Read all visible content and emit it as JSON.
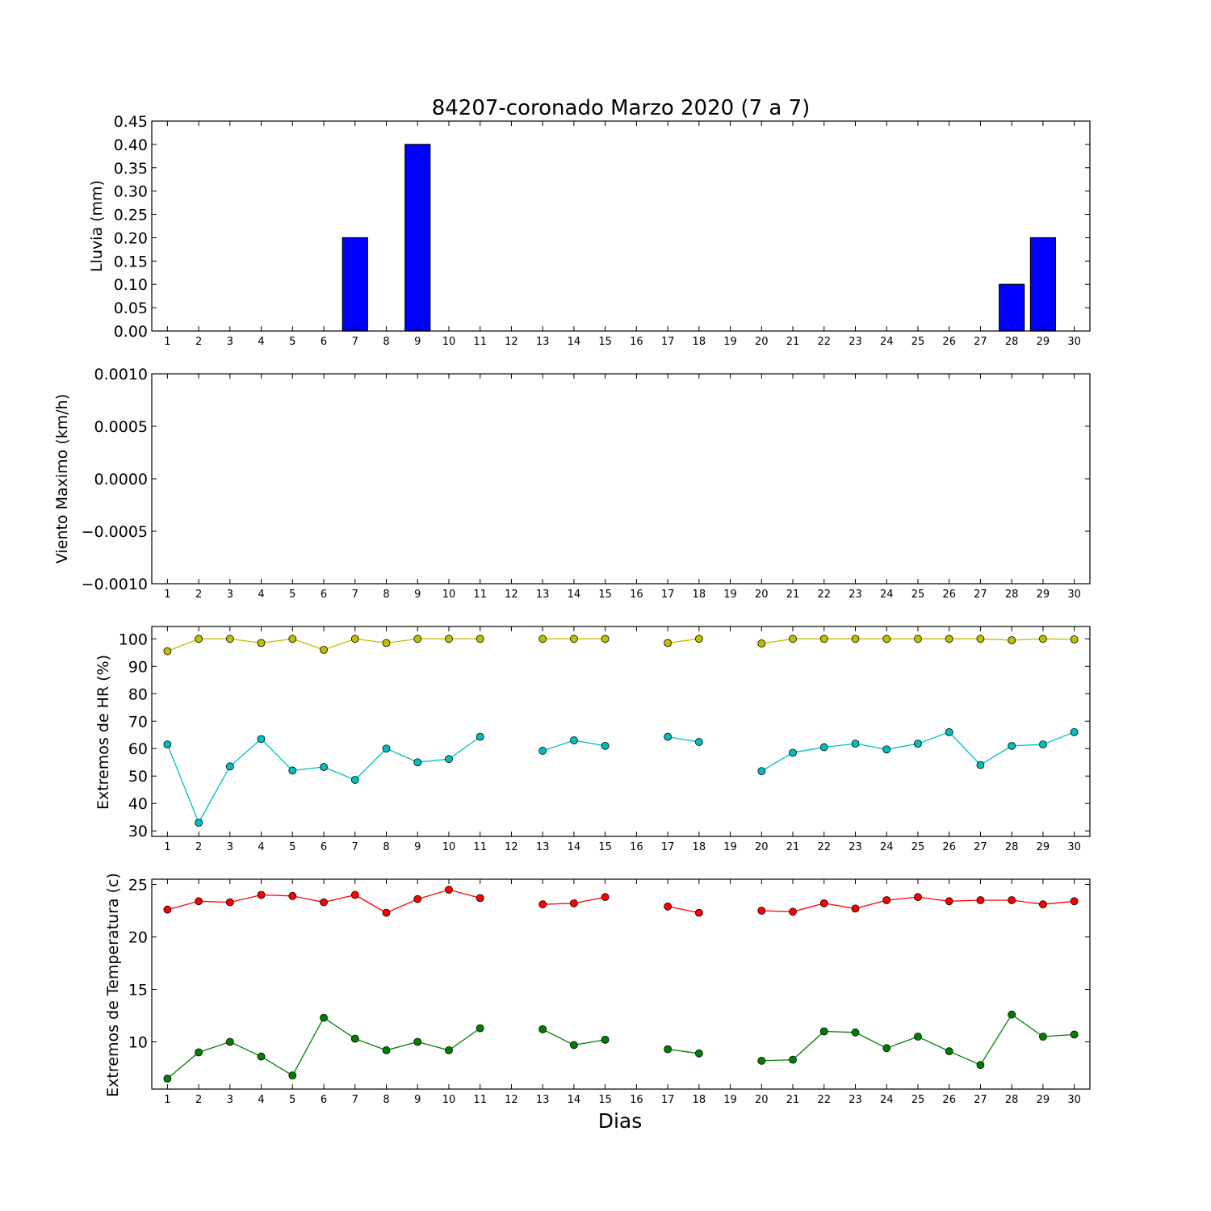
{
  "colors": {
    "rain_bar": "#0000ff",
    "rh_max": "#bfbf00",
    "rh_min": "#00bfbf",
    "temp_max": "#ff0000",
    "temp_min": "#008000"
  },
  "chart_data": [
    {
      "type": "bar",
      "title": "84207-coronado Marzo 2020  (7 a 7)",
      "xlabel": "",
      "ylabel": "Lluvia (mm)",
      "categories": [
        "1",
        "2",
        "3",
        "4",
        "5",
        "6",
        "7",
        "8",
        "9",
        "10",
        "11",
        "12",
        "13",
        "14",
        "15",
        "16",
        "17",
        "18",
        "19",
        "20",
        "21",
        "22",
        "23",
        "24",
        "25",
        "26",
        "27",
        "28",
        "29",
        "30"
      ],
      "values": [
        0,
        0,
        0,
        0,
        0,
        0,
        0.2,
        0,
        0.4,
        0,
        0,
        0,
        0,
        0,
        0,
        0,
        0,
        0,
        0,
        0,
        0,
        0,
        0,
        0,
        0,
        0,
        0,
        0.1,
        0.2,
        0
      ],
      "ylim": [
        0,
        0.45
      ],
      "yticks": [
        "0.00",
        "0.05",
        "0.10",
        "0.15",
        "0.20",
        "0.25",
        "0.30",
        "0.35",
        "0.40",
        "0.45"
      ]
    },
    {
      "type": "line",
      "xlabel": "",
      "ylabel": "Viento Maximo (km/h)",
      "categories": [
        "1",
        "2",
        "3",
        "4",
        "5",
        "6",
        "7",
        "8",
        "9",
        "10",
        "11",
        "12",
        "13",
        "14",
        "15",
        "16",
        "17",
        "18",
        "19",
        "20",
        "21",
        "22",
        "23",
        "24",
        "25",
        "26",
        "27",
        "28",
        "29",
        "30"
      ],
      "series": [],
      "ylim": [
        -0.001,
        0.001
      ],
      "yticks": [
        "−0.0010",
        "−0.0005",
        "0.0000",
        "0.0005",
        "0.0010"
      ]
    },
    {
      "type": "line",
      "xlabel": "",
      "ylabel": "Extremos de HR (%)",
      "categories": [
        "1",
        "2",
        "3",
        "4",
        "5",
        "6",
        "7",
        "8",
        "9",
        "10",
        "11",
        "12",
        "13",
        "14",
        "15",
        "16",
        "17",
        "18",
        "19",
        "20",
        "21",
        "22",
        "23",
        "24",
        "25",
        "26",
        "27",
        "28",
        "29",
        "30"
      ],
      "series": [
        {
          "values": [
            95.5,
            100,
            100,
            98.5,
            100,
            96,
            100,
            98.5,
            100,
            100,
            100,
            null,
            100,
            100,
            100,
            null,
            98.5,
            100,
            null,
            98.3,
            100,
            100,
            100,
            100,
            100,
            100,
            100,
            99.5,
            100,
            99.8
          ]
        },
        {
          "values": [
            61.5,
            33,
            53.5,
            63.5,
            52,
            53.3,
            48.6,
            60,
            55,
            56.2,
            64.3,
            null,
            59.2,
            63,
            61,
            null,
            64.3,
            62.4,
            null,
            51.8,
            58.5,
            60.5,
            61.8,
            59.7,
            61.8,
            66,
            54,
            61,
            61.5,
            66
          ]
        }
      ],
      "ylim": [
        28,
        104.5
      ],
      "yticks": [
        "30",
        "40",
        "50",
        "60",
        "70",
        "80",
        "90",
        "100"
      ]
    },
    {
      "type": "line",
      "xlabel": "Dias",
      "ylabel": "Extremos de Temperatura (c)",
      "categories": [
        "1",
        "2",
        "3",
        "4",
        "5",
        "6",
        "7",
        "8",
        "9",
        "10",
        "11",
        "12",
        "13",
        "14",
        "15",
        "16",
        "17",
        "18",
        "19",
        "20",
        "21",
        "22",
        "23",
        "24",
        "25",
        "26",
        "27",
        "28",
        "29",
        "30"
      ],
      "series": [
        {
          "values": [
            22.6,
            23.4,
            23.3,
            24,
            23.9,
            23.3,
            24,
            22.3,
            23.6,
            24.5,
            23.7,
            null,
            23.1,
            23.2,
            23.8,
            null,
            22.9,
            22.3,
            null,
            22.5,
            22.4,
            23.2,
            22.7,
            23.5,
            23.8,
            23.4,
            23.5,
            23.5,
            23.1,
            23.4
          ]
        },
        {
          "values": [
            6.5,
            9,
            10,
            8.6,
            6.8,
            12.3,
            10.3,
            9.2,
            10,
            9.2,
            11.3,
            null,
            11.2,
            9.7,
            10.2,
            null,
            9.3,
            8.9,
            null,
            8.2,
            8.3,
            11,
            10.9,
            9.4,
            10.5,
            9.1,
            7.8,
            12.6,
            10.5,
            10.7
          ]
        }
      ],
      "ylim": [
        5.5,
        25.5
      ],
      "yticks": [
        "10",
        "15",
        "20",
        "25"
      ]
    }
  ]
}
